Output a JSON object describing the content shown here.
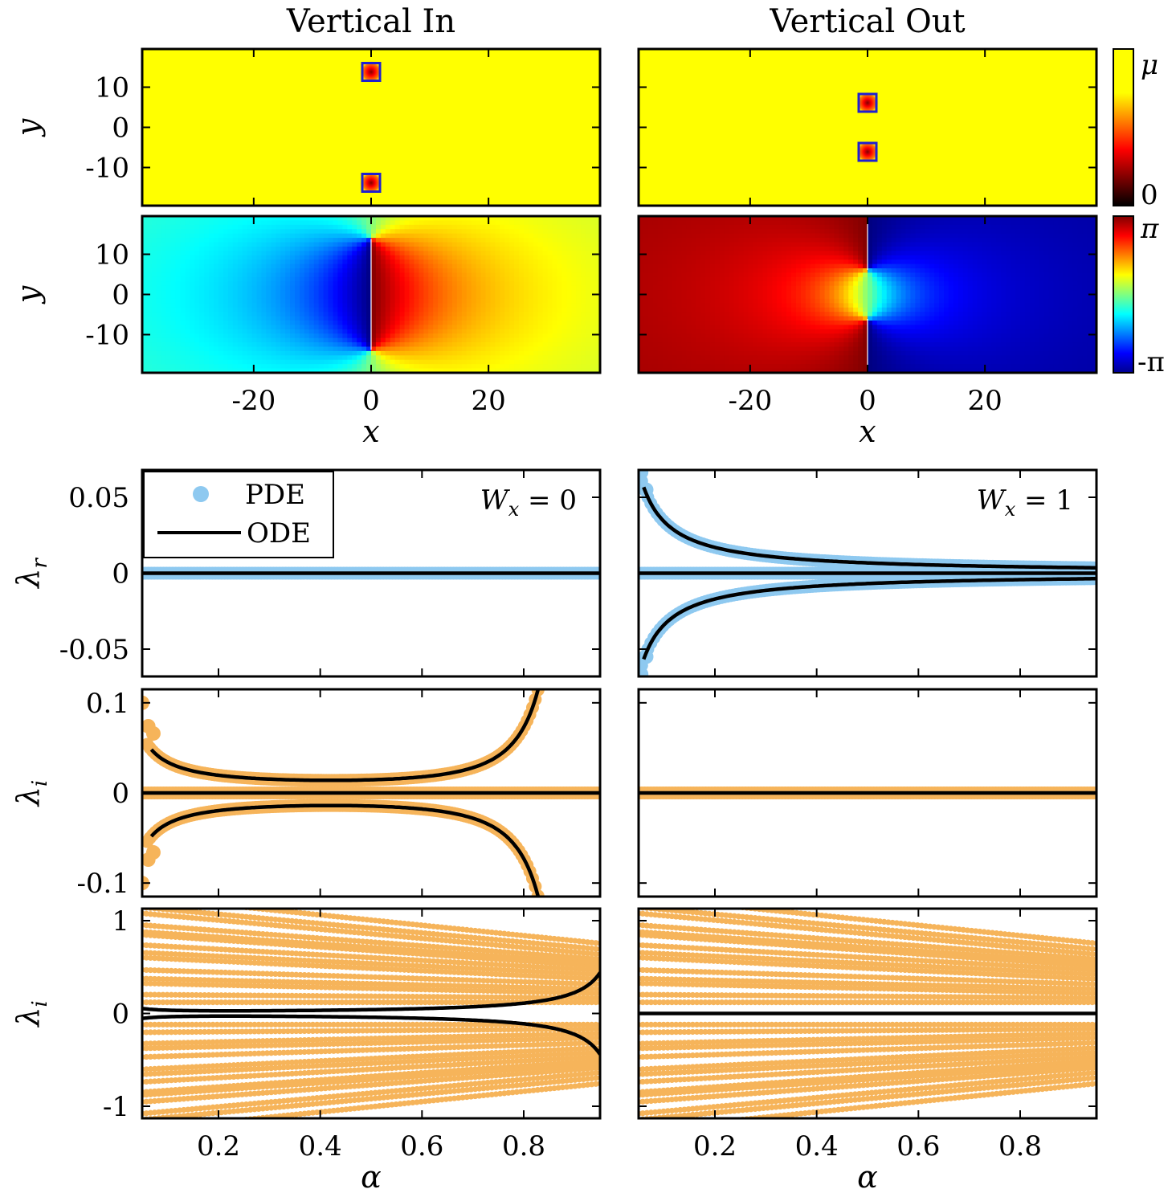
{
  "figure": {
    "colors": {
      "pde_real": "#8ec9f0",
      "pde_imag": "#f6b45a",
      "ode": "#000000",
      "box": "#1f1fd0"
    },
    "colorbars": [
      {
        "type": "hot",
        "top_label": "μ",
        "bottom_label": "0"
      },
      {
        "type": "jet",
        "top_label": "π",
        "bottom_label": "-π"
      }
    ],
    "legend": {
      "entries": [
        {
          "label": "PDE",
          "marker": "dot"
        },
        {
          "label": "ODE",
          "marker": "line"
        }
      ]
    }
  },
  "chart_data": [
    {
      "id": "density-in",
      "type": "heatmap",
      "title": "Vertical In",
      "ylabel": "y",
      "xlim": [
        -39,
        39
      ],
      "ylim": [
        -19.5,
        19.5
      ],
      "yticks": [
        "10",
        "0",
        "-10"
      ],
      "vortices": [
        {
          "x": 0,
          "y": 13.8
        },
        {
          "x": 0,
          "y": -13.8
        }
      ]
    },
    {
      "id": "density-out",
      "type": "heatmap",
      "title": "Vertical Out",
      "xlim": [
        -39,
        39
      ],
      "ylim": [
        -19.5,
        19.5
      ],
      "vortices": [
        {
          "x": 0,
          "y": 6.1
        },
        {
          "x": 0,
          "y": -6.1
        }
      ]
    },
    {
      "id": "phase-in",
      "type": "heatmap",
      "ylabel": "y",
      "xlabel": "x",
      "xlim": [
        -39,
        39
      ],
      "ylim": [
        -19.5,
        19.5
      ],
      "yticks": [
        "10",
        "0",
        "-10"
      ],
      "xticks": [
        "-20",
        "0",
        "20"
      ],
      "branch_cut": {
        "x": 0,
        "y_range": [
          -13.8,
          13.8
        ]
      }
    },
    {
      "id": "phase-out",
      "type": "heatmap",
      "xlabel": "x",
      "xlim": [
        -39,
        39
      ],
      "ylim": [
        -19.5,
        19.5
      ],
      "xticks": [
        "-20",
        "0",
        "20"
      ],
      "branch_cut": {
        "x": 0,
        "y_range": [
          6.1,
          19.5,
          -19.5,
          -6.1
        ]
      }
    },
    {
      "id": "lambda-r-in",
      "type": "scatter",
      "ylabel": "λ_r",
      "annotation": "W_x = 0",
      "xlim": [
        0.05,
        0.95
      ],
      "ylim": [
        -0.068,
        0.068
      ],
      "yticks": [
        "0.05",
        "0",
        "-0.05"
      ],
      "series": [
        {
          "kind": "pde",
          "curve": "zero"
        },
        {
          "kind": "ode",
          "curve": "zero"
        }
      ]
    },
    {
      "id": "lambda-r-out",
      "type": "scatter",
      "annotation": "W_x = 1",
      "xlim": [
        0.05,
        0.95
      ],
      "ylim": [
        -0.068,
        0.068
      ],
      "series": [
        {
          "kind": "pde",
          "curve": "zero"
        },
        {
          "kind": "pde",
          "curve": "pair_decay",
          "scale": 0.0034,
          "start": 0.05
        },
        {
          "kind": "ode",
          "curve": "zero"
        },
        {
          "kind": "ode",
          "curve": "pair_decay",
          "scale": 0.0034,
          "start": 0.06
        }
      ],
      "extra_points": [
        {
          "x": 0.055,
          "y": 0.0665
        },
        {
          "x": 0.055,
          "y": -0.0665
        },
        {
          "x": 0.065,
          "y": 0.055
        },
        {
          "x": 0.065,
          "y": -0.055
        }
      ]
    },
    {
      "id": "lambda-i-in",
      "type": "scatter",
      "ylabel": "λ_i",
      "xlim": [
        0.05,
        0.95
      ],
      "ylim": [
        -0.115,
        0.115
      ],
      "yticks": [
        "0.1",
        "0",
        "-0.1"
      ],
      "series": [
        {
          "kind": "pde",
          "curve": "zero"
        },
        {
          "kind": "pde",
          "curve": "pair_bowl",
          "start": 0.06,
          "end": 0.86
        },
        {
          "kind": "ode",
          "curve": "zero"
        },
        {
          "kind": "ode",
          "curve": "pair_bowl",
          "start": 0.068,
          "end": 0.86
        }
      ],
      "extra_points": [
        {
          "x": 0.05,
          "y": 0.1
        },
        {
          "x": 0.05,
          "y": -0.1
        },
        {
          "x": 0.062,
          "y": 0.074
        },
        {
          "x": 0.062,
          "y": -0.074
        },
        {
          "x": 0.072,
          "y": 0.066
        },
        {
          "x": 0.072,
          "y": -0.066
        }
      ]
    },
    {
      "id": "lambda-i-out",
      "type": "scatter",
      "xlim": [
        0.05,
        0.95
      ],
      "ylim": [
        -0.115,
        0.115
      ],
      "series": [
        {
          "kind": "pde",
          "curve": "zero"
        },
        {
          "kind": "ode",
          "curve": "zero"
        }
      ]
    },
    {
      "id": "spectrum-in",
      "type": "scatter",
      "ylabel": "λ_i",
      "xlabel": "α",
      "xlim": [
        0.05,
        0.95
      ],
      "ylim": [
        -1.13,
        1.13
      ],
      "yticks": [
        "1",
        "0",
        "-1"
      ],
      "xticks": [
        "0.2",
        "0.4",
        "0.6",
        "0.8"
      ],
      "series": [
        {
          "kind": "pde",
          "curve": "band",
          "mode_count": 14
        },
        {
          "kind": "ode",
          "curve": "pair_rise",
          "scale": 0.05,
          "start": 0.05,
          "end": 0.95
        }
      ]
    },
    {
      "id": "spectrum-out",
      "type": "scatter",
      "xlabel": "α",
      "xlim": [
        0.05,
        0.95
      ],
      "ylim": [
        -1.13,
        1.13
      ],
      "xticks": [
        "0.2",
        "0.4",
        "0.6",
        "0.8"
      ],
      "series": [
        {
          "kind": "pde",
          "curve": "band",
          "mode_count": 14
        },
        {
          "kind": "ode",
          "curve": "zero"
        }
      ]
    }
  ]
}
